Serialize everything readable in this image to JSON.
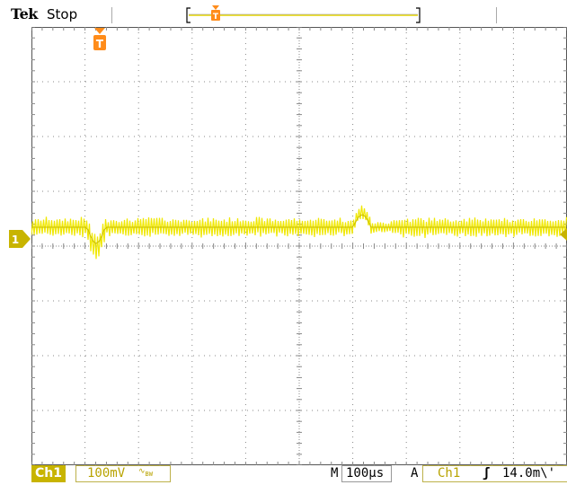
{
  "header": {
    "brand": "Tek",
    "status": "Stop"
  },
  "channel": {
    "name": "Ch1",
    "marker_label": "1",
    "scale": "100mV",
    "bandwidth_icon": "bandwidth-limit-icon",
    "color": "#ffff00"
  },
  "timebase": {
    "prefix": "M",
    "value": "100μs"
  },
  "trigger": {
    "prefix": "A",
    "source": "Ch1",
    "slope": "rising-edge-icon",
    "slope_glyph": "ʃ",
    "level": "14.0m\\'",
    "marker_label": "T",
    "marker_color": "#ff8c1a"
  },
  "colors": {
    "trace": "#f0e800",
    "grid": "#888888",
    "channel_badge": "#c8b400"
  }
}
